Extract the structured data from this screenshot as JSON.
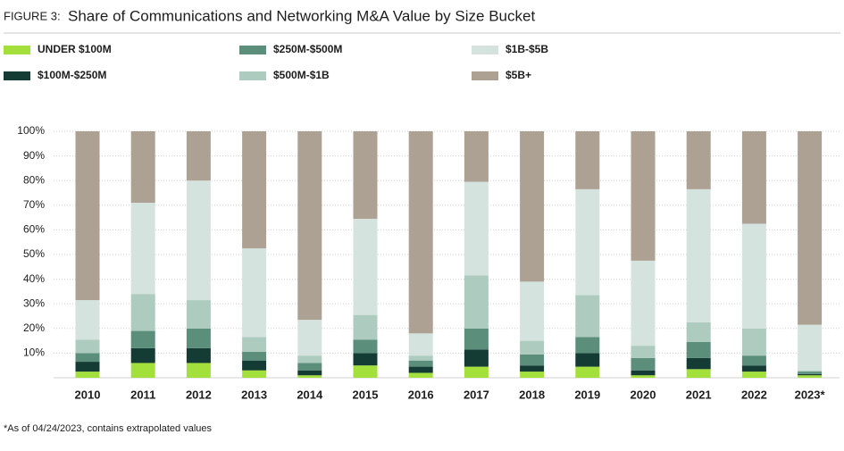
{
  "chart_data": {
    "type": "stacked_bar",
    "figure_label": "FIGURE 3:",
    "title": "Share of Communications and Networking M&A Value by Size Bucket",
    "footnote": "*As of 04/24/2023, contains extrapolated values",
    "categories": [
      "2010",
      "2011",
      "2012",
      "2013",
      "2014",
      "2015",
      "2016",
      "2017",
      "2018",
      "2019",
      "2020",
      "2021",
      "2022",
      "2023*"
    ],
    "series": [
      {
        "name": "UNDER $100M",
        "color": "#a3e03c",
        "values": [
          2.5,
          6,
          6,
          3,
          1,
          5,
          2,
          4.5,
          2.5,
          4.5,
          1,
          3.5,
          2.5,
          1
        ]
      },
      {
        "name": "$100M-$250M",
        "color": "#143c35",
        "values": [
          4,
          6,
          6,
          4,
          2,
          5,
          2.5,
          7,
          2.5,
          5.5,
          2,
          4.5,
          2.5,
          0.5
        ]
      },
      {
        "name": "$250M-$500M",
        "color": "#5b8e7b",
        "values": [
          3.5,
          7,
          8,
          3.5,
          3,
          5.5,
          2.5,
          8.5,
          4.5,
          6.5,
          5,
          6.5,
          4,
          1
        ]
      },
      {
        "name": "$500M-$1B",
        "color": "#aecbbf",
        "values": [
          5.5,
          15,
          11.5,
          6,
          3,
          10,
          2,
          21.5,
          5.5,
          17,
          5,
          8,
          11,
          0.5
        ]
      },
      {
        "name": "$1B-$5B",
        "color": "#d5e3df",
        "values": [
          16,
          37,
          48.5,
          36,
          14.5,
          39,
          9,
          38,
          24,
          43,
          34.5,
          54,
          42.5,
          18.5
        ]
      },
      {
        "name": "$5B+",
        "color": "#aca193",
        "values": [
          68.5,
          29,
          20,
          47.5,
          76.5,
          35.5,
          82,
          20.5,
          61,
          23.5,
          52.5,
          23.5,
          37.5,
          78.5
        ]
      }
    ],
    "ylim": [
      0,
      100
    ],
    "yticks": [
      {
        "value": 10,
        "label": "10%"
      },
      {
        "value": 20,
        "label": "20%"
      },
      {
        "value": 30,
        "label": "30%"
      },
      {
        "value": 40,
        "label": "40%"
      },
      {
        "value": 50,
        "label": "50%"
      },
      {
        "value": 60,
        "label": "60%"
      },
      {
        "value": 70,
        "label": "70%"
      },
      {
        "value": 80,
        "label": "80%"
      },
      {
        "value": 90,
        "label": "90%"
      },
      {
        "value": 100,
        "label": "100%"
      }
    ],
    "grid": true
  }
}
